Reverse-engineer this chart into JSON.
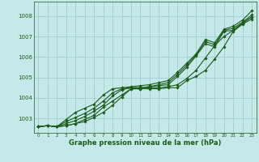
{
  "title": "",
  "xlabel": "Graphe pression niveau de la mer (hPa)",
  "background_color": "#c5e8e8",
  "grid_color": "#9ecece",
  "line_color": "#1a5c1a",
  "marker_color": "#1a5c1a",
  "xlim": [
    -0.5,
    23.5
  ],
  "ylim": [
    1002.3,
    1008.7
  ],
  "yticks": [
    1003,
    1004,
    1005,
    1006,
    1007,
    1008
  ],
  "xticks": [
    0,
    1,
    2,
    3,
    4,
    5,
    6,
    7,
    8,
    9,
    10,
    11,
    12,
    13,
    14,
    15,
    16,
    17,
    18,
    19,
    20,
    21,
    22,
    23
  ],
  "series": [
    [
      1002.6,
      1002.65,
      1002.6,
      1002.65,
      1002.75,
      1002.85,
      1003.05,
      1003.3,
      1003.65,
      1004.05,
      1004.45,
      1004.45,
      1004.45,
      1004.45,
      1004.5,
      1004.5,
      1004.85,
      1005.05,
      1005.35,
      1005.9,
      1006.5,
      1007.25,
      1007.6,
      1007.85
    ],
    [
      1002.6,
      1002.65,
      1002.6,
      1002.65,
      1002.75,
      1002.95,
      1003.15,
      1003.55,
      1003.85,
      1004.15,
      1004.45,
      1004.45,
      1004.5,
      1004.5,
      1004.55,
      1004.65,
      1004.95,
      1005.35,
      1005.95,
      1006.55,
      1007.0,
      1007.3,
      1007.65,
      1007.95
    ],
    [
      1002.6,
      1002.65,
      1002.6,
      1002.75,
      1002.9,
      1003.1,
      1003.35,
      1003.65,
      1004.1,
      1004.4,
      1004.5,
      1004.5,
      1004.55,
      1004.6,
      1004.65,
      1005.05,
      1005.5,
      1006.05,
      1006.65,
      1006.5,
      1007.25,
      1007.3,
      1007.65,
      1007.95
    ],
    [
      1002.6,
      1002.65,
      1002.6,
      1002.85,
      1003.05,
      1003.25,
      1003.5,
      1003.85,
      1004.25,
      1004.45,
      1004.5,
      1004.5,
      1004.55,
      1004.65,
      1004.75,
      1005.15,
      1005.6,
      1006.1,
      1006.75,
      1006.6,
      1007.3,
      1007.4,
      1007.7,
      1008.05
    ],
    [
      1002.6,
      1002.65,
      1002.6,
      1002.95,
      1003.3,
      1003.5,
      1003.7,
      1004.15,
      1004.45,
      1004.5,
      1004.55,
      1004.6,
      1004.65,
      1004.75,
      1004.85,
      1005.25,
      1005.7,
      1006.15,
      1006.85,
      1006.7,
      1007.35,
      1007.5,
      1007.8,
      1008.25
    ]
  ]
}
